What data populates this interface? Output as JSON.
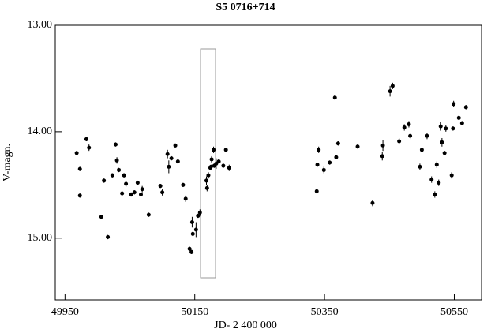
{
  "chart_data": {
    "type": "scatter",
    "title": "S5 0716+714",
    "x_label": "JD- 2 400 000",
    "y_label": "V-magn.",
    "xlim": [
      49935,
      50592
    ],
    "xticks": [
      49950,
      50150,
      50350,
      50550
    ],
    "ylim": [
      15.58,
      13.0
    ],
    "y_reversed": true,
    "yticks": [
      {
        "value": 13,
        "label": "13.00"
      },
      {
        "value": 14,
        "label": "14.00"
      },
      {
        "value": 15,
        "label": "15.00"
      }
    ],
    "color": "#000000",
    "x": [
      49968,
      49973,
      49973,
      49983,
      49987,
      50006,
      50010,
      50016,
      50023,
      50028,
      50030,
      50033,
      50038,
      50041,
      50044,
      50052,
      50057,
      50062,
      50067,
      50069,
      50079,
      50097,
      50100,
      50108,
      50110,
      50114,
      50120,
      50124,
      50132,
      50136,
      50142,
      50145,
      50146,
      50147,
      50152,
      50155,
      50158,
      50168,
      50169,
      50171,
      50174,
      50175,
      50176,
      50179,
      50180,
      50183,
      50187,
      50194,
      50198,
      50203,
      50338,
      50339,
      50341,
      50349,
      50358,
      50366,
      50368,
      50371,
      50401,
      50424,
      50439,
      50440,
      50451,
      50455,
      50465,
      50473,
      50480,
      50482,
      50497,
      50500,
      50508,
      50515,
      50520,
      50523,
      50526,
      50529,
      50531,
      50535,
      50537,
      50546,
      50548,
      50549,
      50557,
      50562,
      50568
    ],
    "values": [
      14.2,
      14.35,
      14.6,
      14.07,
      14.15,
      14.8,
      14.46,
      14.99,
      14.41,
      14.12,
      14.27,
      14.36,
      14.58,
      14.41,
      14.49,
      14.59,
      14.57,
      14.48,
      14.59,
      14.54,
      14.78,
      14.51,
      14.57,
      14.21,
      14.33,
      14.25,
      14.13,
      14.28,
      14.5,
      14.63,
      15.1,
      15.13,
      14.85,
      14.96,
      14.92,
      14.79,
      14.76,
      14.46,
      14.53,
      14.41,
      14.34,
      14.33,
      14.26,
      14.17,
      14.32,
      14.3,
      14.28,
      14.32,
      14.17,
      14.34,
      14.56,
      14.31,
      14.17,
      14.36,
      14.29,
      13.68,
      14.24,
      14.11,
      14.14,
      14.67,
      14.23,
      14.13,
      13.62,
      13.57,
      14.09,
      13.96,
      13.93,
      14.04,
      14.33,
      14.17,
      14.04,
      14.45,
      14.59,
      14.31,
      14.48,
      13.95,
      14.1,
      14.2,
      13.97,
      14.41,
      13.97,
      13.74,
      13.87,
      13.92,
      13.77
    ],
    "errors": [
      0.02,
      0.02,
      0.02,
      0.02,
      0.03,
      0.02,
      0.02,
      0.02,
      0.02,
      0.02,
      0.03,
      0.02,
      0.02,
      0.02,
      0.03,
      0.02,
      0.02,
      0.02,
      0.02,
      0.03,
      0.02,
      0.02,
      0.03,
      0.04,
      0.06,
      0.02,
      0.02,
      0.02,
      0.02,
      0.03,
      0.02,
      0.02,
      0.05,
      0.02,
      0.07,
      0.02,
      0.03,
      0.04,
      0.03,
      0.03,
      0.02,
      0.02,
      0.03,
      0.03,
      0.02,
      0.05,
      0.02,
      0.02,
      0.02,
      0.03,
      0.02,
      0.02,
      0.03,
      0.03,
      0.02,
      0.02,
      0.02,
      0.02,
      0.02,
      0.03,
      0.04,
      0.05,
      0.05,
      0.03,
      0.03,
      0.03,
      0.03,
      0.03,
      0.03,
      0.02,
      0.03,
      0.03,
      0.03,
      0.03,
      0.03,
      0.04,
      0.04,
      0.02,
      0.03,
      0.03,
      0.02,
      0.03,
      0.02,
      0.02,
      0.02
    ]
  }
}
